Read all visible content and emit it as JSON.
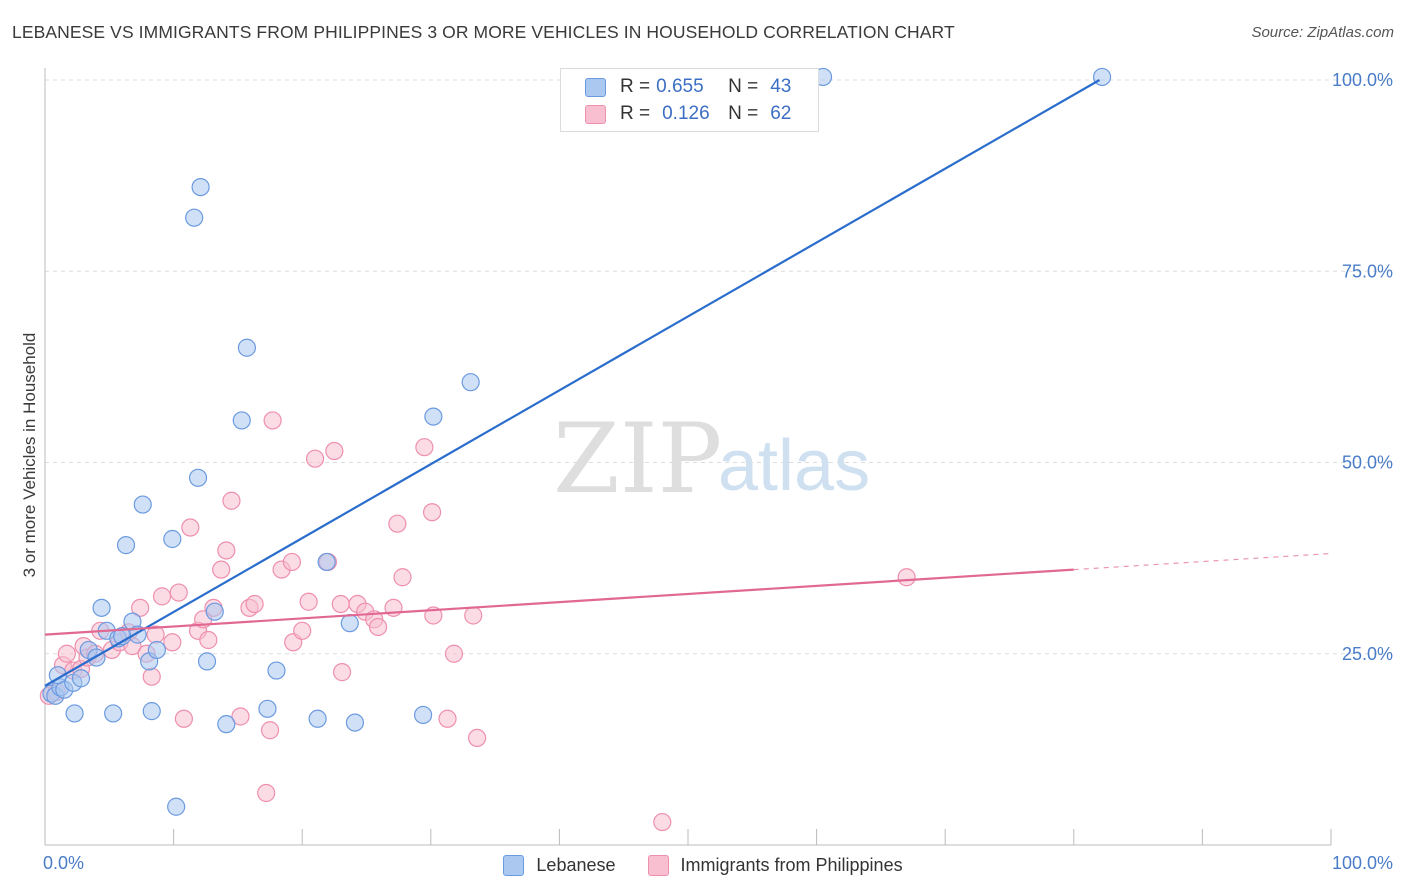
{
  "title": "LEBANESE VS IMMIGRANTS FROM PHILIPPINES 3 OR MORE VEHICLES IN HOUSEHOLD CORRELATION CHART",
  "source": "Source: ZipAtlas.com",
  "watermark": {
    "zip": "ZIP",
    "atlas": "atlas"
  },
  "legend_top": {
    "rows": [
      {
        "r_label": "R =",
        "r_value": "0.655",
        "n_label": "N =",
        "n_value": "43"
      },
      {
        "r_label": "R =",
        "r_value": "0.126",
        "n_label": "N =",
        "n_value": "62"
      }
    ]
  },
  "legend_bottom": {
    "series1": "Lebanese",
    "series2": "Immigrants from Philippines"
  },
  "colors": {
    "blue_fill": "#aac8f0",
    "blue_stroke": "#6b9ae0",
    "blue_line": "#2a6dcc",
    "pink_fill": "#f8bfd0",
    "pink_stroke": "#ee8fae",
    "pink_line": "#e06892",
    "tick_text": "#4a7cc8"
  },
  "chart_data": {
    "type": "scatter",
    "title": "LEBANESE VS IMMIGRANTS FROM PHILIPPINES 3 OR MORE VEHICLES IN HOUSEHOLD CORRELATION CHART",
    "xlabel": "",
    "ylabel": "3 or more Vehicles in Household",
    "xlim": [
      0,
      100
    ],
    "ylim": [
      0,
      102
    ],
    "x_tick_labels": [
      "0.0%",
      "100.0%"
    ],
    "y_ticks": [
      25,
      50,
      75,
      100
    ],
    "y_tick_labels": [
      "25.0%",
      "50.0%",
      "75.0%",
      "100.0%"
    ],
    "series": [
      {
        "name": "Lebanese",
        "R": 0.655,
        "N": 43,
        "trend": {
          "x": [
            0,
            82
          ],
          "y": [
            20.8,
            100
          ]
        },
        "points": [
          [
            0.5,
            19.8
          ],
          [
            0.8,
            19.5
          ],
          [
            1.2,
            20.6
          ],
          [
            1.5,
            20.3
          ],
          [
            2.2,
            21.2
          ],
          [
            2.3,
            17.2
          ],
          [
            2.8,
            21.8
          ],
          [
            3.4,
            25.5
          ],
          [
            4.0,
            24.5
          ],
          [
            4.4,
            31.0
          ],
          [
            4.8,
            28.0
          ],
          [
            5.3,
            17.2
          ],
          [
            5.7,
            27.0
          ],
          [
            6.3,
            39.2
          ],
          [
            6.8,
            29.2
          ],
          [
            7.2,
            27.5
          ],
          [
            7.6,
            44.5
          ],
          [
            8.1,
            24.0
          ],
          [
            8.3,
            17.5
          ],
          [
            8.7,
            25.5
          ],
          [
            9.9,
            40.0
          ],
          [
            10.2,
            5.0
          ],
          [
            11.6,
            82.0
          ],
          [
            12.1,
            86.0
          ],
          [
            11.9,
            48.0
          ],
          [
            12.6,
            24.0
          ],
          [
            13.2,
            30.5
          ],
          [
            14.1,
            15.8
          ],
          [
            15.3,
            55.5
          ],
          [
            15.7,
            65.0
          ],
          [
            17.3,
            17.8
          ],
          [
            18.0,
            22.8
          ],
          [
            21.2,
            16.5
          ],
          [
            21.9,
            37.0
          ],
          [
            23.7,
            29.0
          ],
          [
            24.1,
            16.0
          ],
          [
            29.4,
            17.0
          ],
          [
            30.2,
            56.0
          ],
          [
            33.1,
            60.5
          ],
          [
            60.5,
            100.4
          ],
          [
            82.2,
            100.4
          ],
          [
            1.0,
            22.2
          ],
          [
            6.0,
            27.3
          ]
        ]
      },
      {
        "name": "Immigrants from Philippines",
        "R": 0.126,
        "N": 62,
        "trend": {
          "x": [
            0,
            80
          ],
          "y": [
            27.5,
            36.0
          ]
        },
        "trend_dashed": {
          "x": [
            80,
            100
          ],
          "y": [
            36.0,
            38.1
          ]
        },
        "points": [
          [
            0.3,
            19.5
          ],
          [
            0.9,
            20.0
          ],
          [
            1.4,
            23.5
          ],
          [
            1.7,
            25.0
          ],
          [
            2.2,
            22.8
          ],
          [
            2.8,
            23.0
          ],
          [
            3.0,
            26.0
          ],
          [
            3.3,
            24.5
          ],
          [
            3.9,
            25.0
          ],
          [
            4.3,
            28.0
          ],
          [
            5.2,
            25.5
          ],
          [
            5.8,
            26.5
          ],
          [
            6.5,
            27.8
          ],
          [
            6.8,
            26.0
          ],
          [
            7.4,
            31.0
          ],
          [
            7.9,
            25.0
          ],
          [
            8.3,
            22.0
          ],
          [
            8.6,
            27.5
          ],
          [
            9.1,
            32.5
          ],
          [
            9.9,
            26.5
          ],
          [
            10.4,
            33.0
          ],
          [
            10.8,
            16.5
          ],
          [
            11.3,
            41.5
          ],
          [
            11.9,
            28.0
          ],
          [
            12.3,
            29.5
          ],
          [
            12.7,
            26.8
          ],
          [
            13.1,
            31.0
          ],
          [
            13.7,
            36.0
          ],
          [
            14.1,
            38.5
          ],
          [
            14.5,
            45.0
          ],
          [
            15.2,
            16.8
          ],
          [
            15.9,
            31.0
          ],
          [
            16.3,
            31.5
          ],
          [
            17.2,
            6.8
          ],
          [
            17.5,
            15.0
          ],
          [
            17.7,
            55.5
          ],
          [
            18.4,
            36.0
          ],
          [
            19.2,
            37.0
          ],
          [
            19.3,
            26.5
          ],
          [
            20.0,
            28.0
          ],
          [
            20.5,
            31.8
          ],
          [
            21.0,
            50.5
          ],
          [
            22.0,
            37.0
          ],
          [
            22.5,
            51.5
          ],
          [
            23.1,
            22.6
          ],
          [
            23.0,
            31.5
          ],
          [
            24.3,
            31.5
          ],
          [
            24.9,
            30.5
          ],
          [
            25.6,
            29.5
          ],
          [
            25.9,
            28.5
          ],
          [
            27.1,
            31.0
          ],
          [
            27.4,
            42.0
          ],
          [
            27.8,
            35.0
          ],
          [
            29.5,
            52.0
          ],
          [
            30.1,
            43.5
          ],
          [
            30.2,
            30.0
          ],
          [
            31.3,
            16.5
          ],
          [
            31.8,
            25.0
          ],
          [
            33.3,
            30.0
          ],
          [
            33.6,
            14.0
          ],
          [
            48.0,
            3.0
          ],
          [
            67.0,
            35.0
          ]
        ]
      }
    ],
    "grid": true,
    "legend_position": "top-center"
  }
}
